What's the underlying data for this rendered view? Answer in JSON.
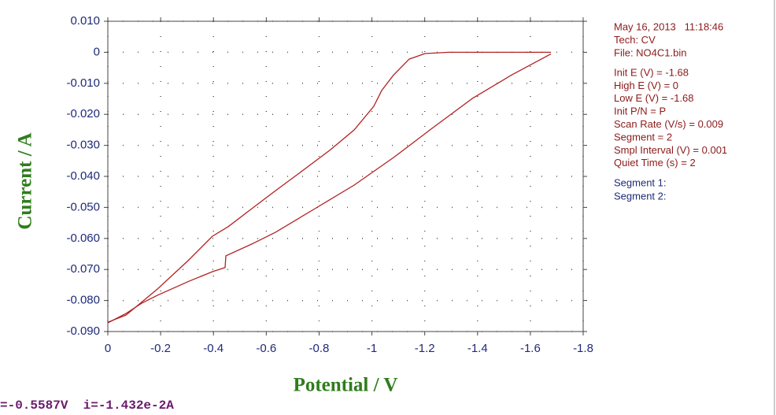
{
  "chart_data": {
    "type": "line",
    "x_label": "Potential / V",
    "y_label": "Current / A",
    "xlim": [
      0,
      -1.8
    ],
    "xticks": [
      0,
      -0.2,
      -0.4,
      -0.6,
      -0.8,
      -1.0,
      -1.2,
      -1.4,
      -1.6,
      -1.8
    ],
    "ylim": [
      -0.09,
      0.01
    ],
    "yticks": [
      {
        "value": 0.01,
        "label": "0.010"
      },
      0,
      {
        "value": -0.01,
        "label": "-0.010"
      },
      {
        "value": -0.02,
        "label": "-0.020"
      },
      {
        "value": -0.03,
        "label": "-0.030"
      },
      {
        "value": -0.04,
        "label": "-0.040"
      },
      {
        "value": -0.05,
        "label": "-0.050"
      },
      {
        "value": -0.06,
        "label": "-0.060"
      },
      {
        "value": -0.07,
        "label": "-0.070"
      },
      {
        "value": -0.08,
        "label": "-0.080"
      },
      {
        "value": -0.09,
        "label": "-0.090"
      }
    ],
    "grid": true,
    "series": [
      {
        "color": "#b22222",
        "x": [
          0,
          -0.069,
          -0.188,
          -0.307,
          -0.396,
          -0.456,
          -0.545,
          -0.635,
          -0.724,
          -0.843,
          -0.933,
          -1.007,
          -1.037,
          -1.082,
          -1.141,
          -1.201,
          -1.29,
          -1.678
        ],
        "values": [
          -0.087,
          -0.0847,
          -0.0763,
          -0.0669,
          -0.0593,
          -0.0562,
          -0.0504,
          -0.0446,
          -0.039,
          -0.0314,
          -0.025,
          -0.0174,
          -0.0123,
          -0.0073,
          -0.0022,
          -0.0004,
          0,
          0
        ]
      },
      {
        "color": "#b22222",
        "x": [
          -1.678,
          -1.529,
          -1.38,
          -1.231,
          -1.082,
          -0.933,
          -0.784,
          -0.635,
          -0.545,
          -0.447,
          -0.444,
          -0.396,
          -0.307,
          -0.188,
          -0.128,
          -0.069,
          0
        ],
        "values": [
          -0.0005,
          -0.0073,
          -0.0149,
          -0.0243,
          -0.0339,
          -0.0428,
          -0.0504,
          -0.058,
          -0.0618,
          -0.0656,
          -0.0694,
          -0.0707,
          -0.0738,
          -0.0783,
          -0.0809,
          -0.0842,
          -0.0872
        ]
      }
    ],
    "info_header": [
      "May 16, 2013   11:18:46",
      "Tech: CV",
      "File: NO4C1.bin"
    ],
    "info_params": [
      "Init E (V) = -1.68",
      "High E (V) = 0",
      "Low E (V) = -1.68",
      "Init P/N = P",
      "Scan Rate (V/s) = 0.009",
      "Segment = 2",
      "Smpl Interval (V) = 0.001",
      "Quiet Time (s) = 2"
    ],
    "segments": [
      "Segment 1:",
      "Segment 2:"
    ],
    "status": "=-0.5587V  i=-1.432e-2A"
  }
}
